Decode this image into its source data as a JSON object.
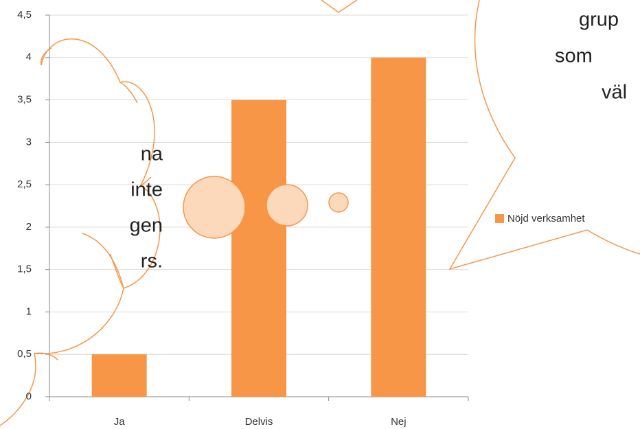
{
  "chart_data": {
    "type": "bar",
    "categories": [
      "Ja",
      "Delvis",
      "Nej"
    ],
    "series": [
      {
        "name": "Nöjd verksamhet",
        "color": "#f79646",
        "values": [
          0.5,
          3.5,
          4
        ]
      }
    ],
    "ylim": [
      0,
      4.5
    ],
    "yticks": [
      0,
      {
        "value": 0.5,
        "label": "0,5"
      },
      1,
      {
        "value": 1.5,
        "label": "1,5"
      },
      2,
      {
        "value": 2.5,
        "label": "2,5"
      },
      3,
      {
        "value": 3.5,
        "label": "3,5"
      },
      4,
      {
        "value": 4.5,
        "label": "4,5"
      }
    ],
    "grid": true,
    "legend": "right",
    "callouts": [
      {
        "lines": [
          "na",
          "inte",
          "gen",
          "rs."
        ]
      },
      {
        "lines": [
          "grup",
          "som",
          "väl"
        ]
      }
    ]
  }
}
